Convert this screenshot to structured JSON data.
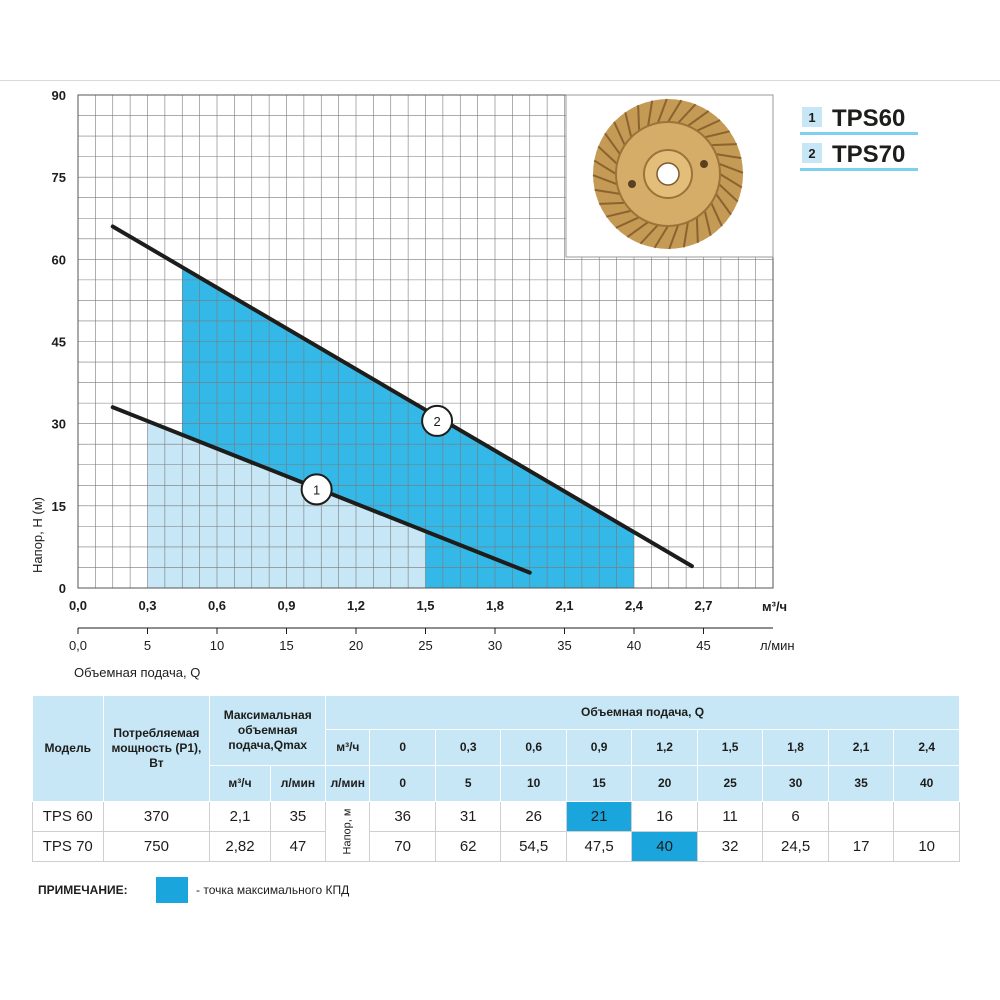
{
  "chart_data": {
    "type": "line",
    "ylabel": "Напор, H (м)",
    "xlabel": "Объемная подача, Q",
    "x_unit_primary": "м³/ч",
    "x_unit_secondary": "л/мин",
    "ylim": [
      0,
      90
    ],
    "xlim": [
      0,
      3.0
    ],
    "y_ticks": [
      "0",
      "15",
      "30",
      "45",
      "60",
      "75",
      "90"
    ],
    "x_ticks_m3h": [
      "0,0",
      "0,3",
      "0,6",
      "0,9",
      "1,2",
      "1,5",
      "1,8",
      "2,1",
      "2,4",
      "2,7"
    ],
    "x_ticks_lmin": [
      "0,0",
      "5",
      "10",
      "15",
      "20",
      "25",
      "30",
      "35",
      "40",
      "45"
    ],
    "grid": true,
    "series": [
      {
        "name": "TPS60",
        "marker": "1",
        "color": "#1d1d1b",
        "x": [
          0.15,
          1.95
        ],
        "y": [
          33,
          2.8
        ],
        "operating_range": {
          "x": [
            0.3,
            1.5
          ],
          "color": "#c7e7f6"
        }
      },
      {
        "name": "TPS70",
        "marker": "2",
        "color": "#1d1d1b",
        "x": [
          0.15,
          2.65
        ],
        "y": [
          66,
          4
        ],
        "operating_range": {
          "x": [
            0.45,
            2.4
          ],
          "color": "#33b8e8"
        }
      }
    ],
    "marker_positions": [
      {
        "label": "1",
        "x": 1.03,
        "y": 18
      },
      {
        "label": "2",
        "x": 1.55,
        "y": 30.5
      }
    ],
    "legend": [
      {
        "num": "1",
        "name": "TPS60"
      },
      {
        "num": "2",
        "name": "TPS70"
      }
    ],
    "legend_position": "top-right"
  },
  "table": {
    "model_header": "Модель",
    "power_header": "Потребляемая мощность (P1), Вт",
    "qmax_header": "Максимальная объемная подача,Qmax",
    "flow_header": "Объемная подача, Q",
    "unit_m3h": "м³/ч",
    "unit_lmin": "л/мин",
    "head_label": "Напор, м",
    "flow_m3h": [
      "0",
      "0,3",
      "0,6",
      "0,9",
      "1,2",
      "1,5",
      "1,8",
      "2,1",
      "2,4"
    ],
    "flow_lmin": [
      "0",
      "5",
      "10",
      "15",
      "20",
      "25",
      "30",
      "35",
      "40"
    ],
    "rows": [
      {
        "model": "TPS 60",
        "power": "370",
        "qmax_m3h": "2,1",
        "qmax_lmin": "35",
        "head": [
          "36",
          "31",
          "26",
          "21",
          "16",
          "11",
          "6",
          "",
          ""
        ],
        "best_index": 3
      },
      {
        "model": "TPS 70",
        "power": "750",
        "qmax_m3h": "2,82",
        "qmax_lmin": "47",
        "head": [
          "70",
          "62",
          "54,5",
          "47,5",
          "40",
          "32",
          "24,5",
          "17",
          "10"
        ],
        "best_index": 4
      }
    ]
  },
  "note": {
    "label": "ПРИМЕЧАНИЕ:",
    "text": "- точка максимального КПД",
    "color": "#1aa5dc"
  }
}
